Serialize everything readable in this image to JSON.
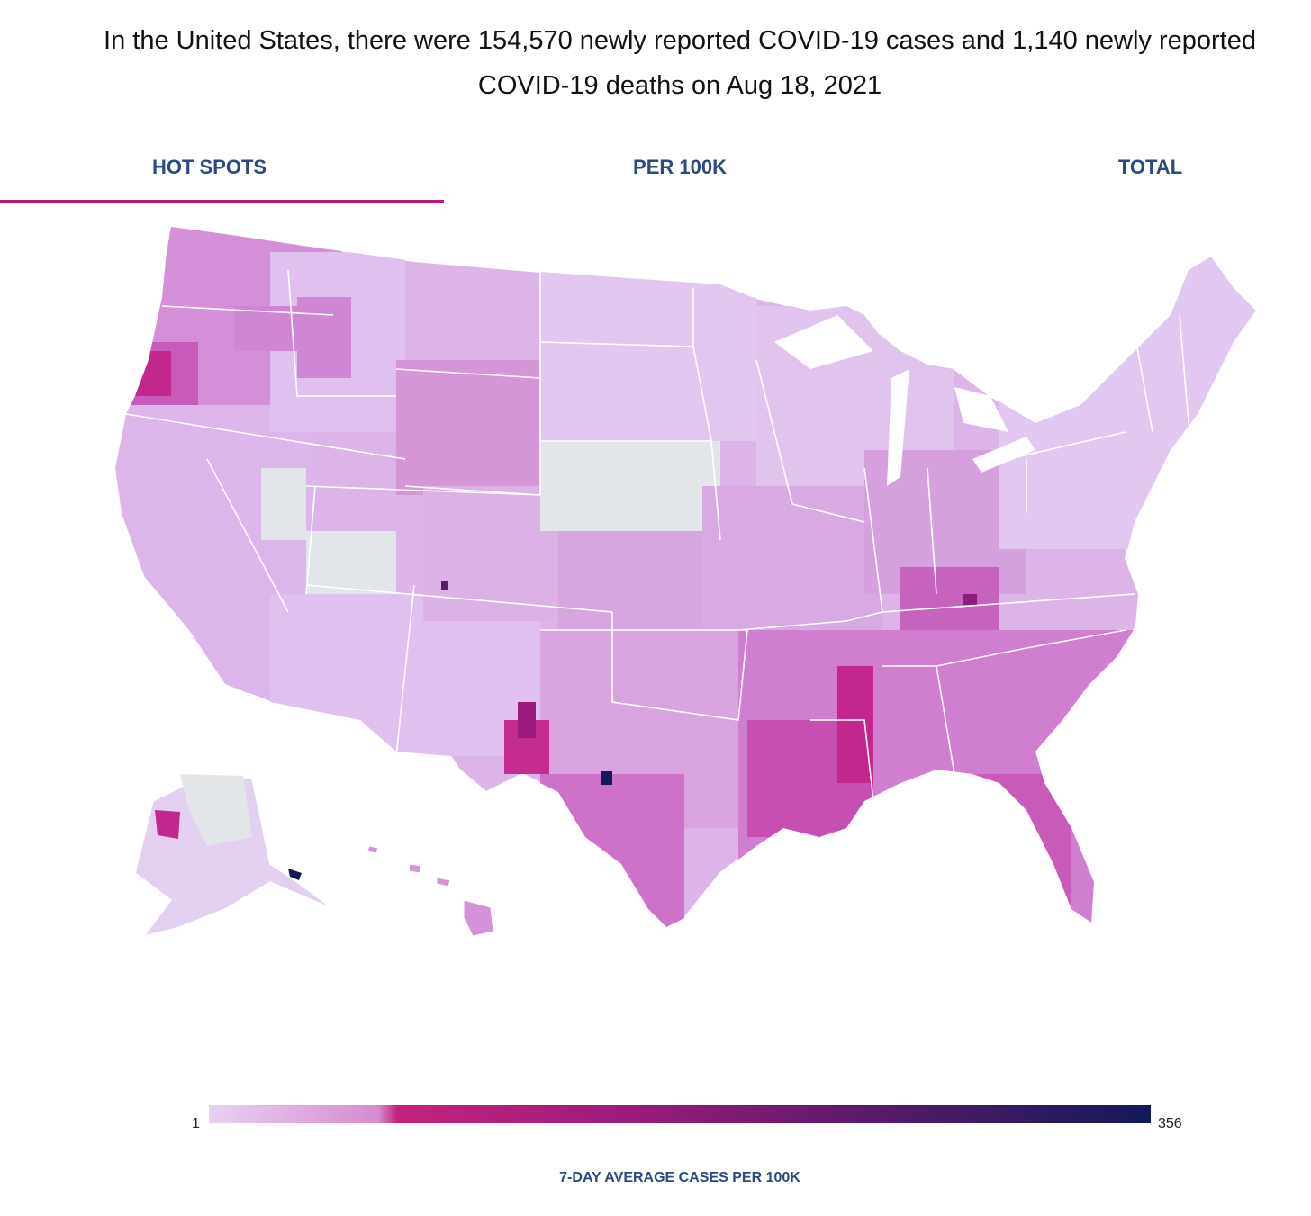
{
  "headline": {
    "line1": "In the United States, there were 154,570 newly reported COVID-19 cases and 1,140 newly reported",
    "line2": "COVID-19 deaths on Aug 18, 2021"
  },
  "tabs": [
    {
      "label": "HOT SPOTS",
      "active": true
    },
    {
      "label": "PER 100K",
      "active": false
    },
    {
      "label": "TOTAL",
      "active": false
    }
  ],
  "legend": {
    "min": "1",
    "max": "356",
    "title": "7-DAY AVERAGE CASES PER 100K",
    "colors": [
      "#e7d2f3",
      "#d78ad0",
      "#c3237d",
      "#9a1b7c",
      "#5a1a6a",
      "#13195b"
    ]
  },
  "map": {
    "colors": {
      "very_light": "#e4c9ef",
      "light": "#d9a9e4",
      "medium": "#cf8fd8",
      "strong": "#c866c0",
      "hot": "#c2278e",
      "hotter": "#8c1d7b",
      "max": "#13195b",
      "no_data": "#e3e6e8",
      "border": "#ffffff"
    }
  }
}
